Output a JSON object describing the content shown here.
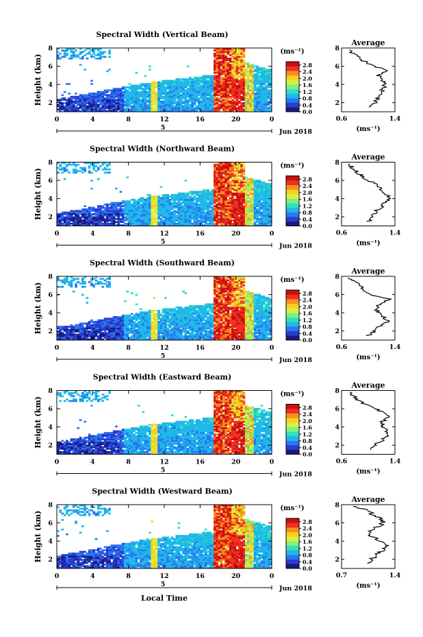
{
  "figure": {
    "xlabel": "Local Time",
    "colors": {
      "colormap": [
        "#1a1a7a",
        "#2a3bd0",
        "#2a78f0",
        "#20b8e8",
        "#30e0c0",
        "#80f080",
        "#d8f040",
        "#f8d020",
        "#f89020",
        "#f03020",
        "#c81010"
      ],
      "line": "#000000",
      "background": "#ffffff"
    }
  },
  "chart_data": [
    {
      "type": "heatmap",
      "title": "Spectral Width (Vertical Beam)",
      "ylabel": "Height (km)",
      "xticks": [
        "0",
        "4",
        "8",
        "12",
        "16",
        "20",
        "0"
      ],
      "yticks": [
        "2",
        "4",
        "6",
        "8"
      ],
      "date_tick": "5",
      "date_label": "Jun 2018",
      "xlim": [
        0,
        24
      ],
      "ylim": [
        1,
        8
      ],
      "colorbar": {
        "label": "(ms⁻¹)",
        "ticks": [
          "0.0",
          "0.4",
          "0.8",
          "1.2",
          "1.6",
          "2.0",
          "2.4",
          "2.8"
        ],
        "range": [
          0,
          3.0
        ]
      },
      "profile": {
        "title": "Average",
        "xlabel": "(ms⁻¹)",
        "xticks": [
          "0.6",
          "1.4"
        ],
        "xlim": [
          0.6,
          1.4
        ],
        "ylim": [
          1,
          8
        ],
        "yticks": [
          "2",
          "4",
          "6",
          "8"
        ],
        "height": [
          1.5,
          2.0,
          2.5,
          3.0,
          3.5,
          4.0,
          4.5,
          5.0,
          5.5,
          6.0,
          6.5,
          7.0,
          7.5,
          7.9
        ],
        "value": [
          1.05,
          1.1,
          1.15,
          1.2,
          1.22,
          1.25,
          1.2,
          1.15,
          1.3,
          1.1,
          0.95,
          0.85,
          0.75,
          0.7
        ]
      }
    },
    {
      "type": "heatmap",
      "title": "Spectral Width (Northward Beam)",
      "ylabel": "Height (km)",
      "xticks": [
        "0",
        "4",
        "8",
        "12",
        "16",
        "20",
        "0"
      ],
      "yticks": [
        "2",
        "4",
        "6",
        "8"
      ],
      "date_tick": "5",
      "date_label": "Jun 2018",
      "xlim": [
        0,
        24
      ],
      "ylim": [
        1,
        8
      ],
      "colorbar": {
        "label": "(ms⁻¹)",
        "ticks": [
          "0.0",
          "0.4",
          "0.8",
          "1.2",
          "1.6",
          "2.0",
          "2.4",
          "2.8"
        ],
        "range": [
          0,
          3.0
        ]
      },
      "profile": {
        "title": "Average",
        "xlabel": "(ms⁻¹)",
        "xticks": [
          "0.6",
          "1.4"
        ],
        "xlim": [
          0.6,
          1.4
        ],
        "ylim": [
          1,
          8
        ],
        "yticks": [
          "2",
          "4",
          "6",
          "8"
        ],
        "height": [
          1.5,
          2.0,
          2.5,
          3.0,
          3.5,
          4.0,
          4.5,
          5.0,
          5.5,
          6.0,
          6.5,
          7.0,
          7.5,
          7.9
        ],
        "value": [
          1.0,
          1.05,
          1.1,
          1.18,
          1.25,
          1.3,
          1.28,
          1.2,
          1.15,
          1.0,
          0.9,
          0.82,
          0.75,
          0.7
        ]
      }
    },
    {
      "type": "heatmap",
      "title": "Spectral Width (Southward Beam)",
      "ylabel": "Height (km)",
      "xticks": [
        "0",
        "4",
        "8",
        "12",
        "16",
        "20",
        "0"
      ],
      "yticks": [
        "2",
        "4",
        "6",
        "8"
      ],
      "date_tick": "5",
      "date_label": "Jun 2018",
      "xlim": [
        0,
        24
      ],
      "ylim": [
        1,
        8
      ],
      "colorbar": {
        "label": "(ms⁻¹)",
        "ticks": [
          "0.0",
          "0.4",
          "0.8",
          "1.2",
          "1.6",
          "2.0",
          "2.4",
          "2.8"
        ],
        "range": [
          0,
          3.0
        ]
      },
      "profile": {
        "title": "Average",
        "xlabel": "(ms⁻¹)",
        "xticks": [
          "0.6",
          "1.4"
        ],
        "xlim": [
          0.6,
          1.4
        ],
        "ylim": [
          1,
          8
        ],
        "yticks": [
          "2",
          "4",
          "6",
          "8"
        ],
        "height": [
          1.5,
          2.0,
          2.5,
          3.0,
          3.5,
          4.0,
          4.5,
          5.0,
          5.5,
          6.0,
          6.5,
          7.0,
          7.5,
          7.9
        ],
        "value": [
          1.0,
          1.1,
          1.15,
          1.3,
          1.25,
          1.15,
          1.1,
          1.2,
          1.3,
          1.05,
          0.95,
          0.88,
          0.78,
          0.7
        ]
      }
    },
    {
      "type": "heatmap",
      "title": "Spectral Width (Eastward Beam)",
      "ylabel": "Height (km)",
      "xticks": [
        "0",
        "4",
        "8",
        "12",
        "16",
        "20",
        "0"
      ],
      "yticks": [
        "2",
        "4",
        "6",
        "8"
      ],
      "date_tick": "5",
      "date_label": "Jun 2018",
      "xlim": [
        0,
        24
      ],
      "ylim": [
        1,
        8
      ],
      "colorbar": {
        "label": "(ms⁻¹)",
        "ticks": [
          "0.0",
          "0.4",
          "0.8",
          "1.2",
          "1.6",
          "2.0",
          "2.4",
          "2.8"
        ],
        "range": [
          0,
          3.0
        ]
      },
      "profile": {
        "title": "Average",
        "xlabel": "(ms⁻¹)",
        "xticks": [
          "0.6",
          "1.4"
        ],
        "xlim": [
          0.6,
          1.4
        ],
        "ylim": [
          1,
          8
        ],
        "yticks": [
          "2",
          "4",
          "6",
          "8"
        ],
        "height": [
          1.5,
          2.0,
          2.5,
          3.0,
          3.5,
          4.0,
          4.5,
          5.0,
          5.5,
          6.0,
          6.5,
          7.0,
          7.5,
          7.9
        ],
        "value": [
          1.05,
          1.1,
          1.2,
          1.3,
          1.28,
          1.22,
          1.2,
          1.3,
          1.25,
          1.1,
          0.95,
          0.85,
          0.75,
          0.7
        ]
      }
    },
    {
      "type": "heatmap",
      "title": "Spectral Width (Westward Beam)",
      "ylabel": "Height (km)",
      "xticks": [
        "0",
        "4",
        "8",
        "12",
        "16",
        "20",
        "0"
      ],
      "yticks": [
        "2",
        "4",
        "6",
        "8"
      ],
      "date_tick": "5",
      "date_label": "Jun 2018",
      "xlim": [
        0,
        24
      ],
      "ylim": [
        1,
        8
      ],
      "colorbar": {
        "label": "(ms⁻¹)",
        "ticks": [
          "0.0",
          "0.4",
          "0.8",
          "1.2",
          "1.6",
          "2.0",
          "2.4",
          "2.8"
        ],
        "range": [
          0,
          3.0
        ]
      },
      "profile": {
        "title": "Average",
        "xlabel": "(ms⁻¹)",
        "xticks": [
          "0.7",
          "1.4"
        ],
        "xlim": [
          0.7,
          1.4
        ],
        "ylim": [
          1,
          8
        ],
        "yticks": [
          "2",
          "4",
          "6",
          "8"
        ],
        "height": [
          1.5,
          2.0,
          2.5,
          3.0,
          3.5,
          4.0,
          4.5,
          5.0,
          5.5,
          6.0,
          6.5,
          7.0,
          7.5,
          7.9
        ],
        "value": [
          1.05,
          1.1,
          1.15,
          1.25,
          1.3,
          1.2,
          1.1,
          1.05,
          1.15,
          1.25,
          1.2,
          1.1,
          1.0,
          0.85
        ]
      }
    }
  ]
}
